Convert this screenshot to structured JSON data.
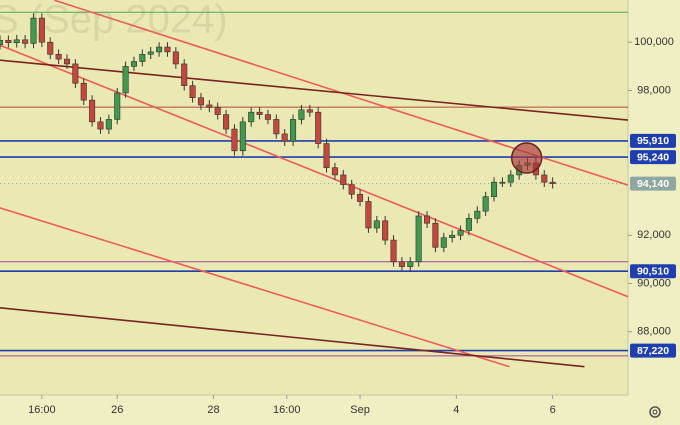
{
  "chart_data": {
    "type": "candlestick",
    "watermark": "S (Sep 2024)",
    "x": [
      0,
      2,
      4,
      6,
      8,
      10,
      12,
      14,
      16,
      18,
      20,
      22,
      24,
      26,
      28,
      30,
      32,
      34,
      36,
      38,
      40,
      42,
      44,
      46,
      48,
      50,
      52,
      54,
      56,
      58,
      60,
      62,
      64,
      66,
      68,
      70,
      72,
      74,
      76,
      78,
      80,
      82,
      84,
      86,
      88,
      90,
      92,
      94,
      96,
      98,
      100,
      102,
      104,
      106,
      108,
      110,
      112,
      114,
      116,
      118,
      120,
      122,
      124,
      126,
      128,
      130,
      132
    ],
    "open": [
      99900,
      100080,
      99980,
      100100,
      99950,
      101000,
      100000,
      99500,
      99300,
      99100,
      98300,
      97600,
      96700,
      96400,
      96800,
      97900,
      99000,
      99200,
      99500,
      99600,
      99800,
      99600,
      99100,
      98200,
      97700,
      97400,
      97300,
      97000,
      96400,
      95500,
      96700,
      97100,
      97000,
      96800,
      96200,
      95900,
      96800,
      97200,
      97100,
      95800,
      94800,
      94500,
      94100,
      93700,
      93400,
      92300,
      92600,
      91800,
      90900,
      90700,
      90900,
      92800,
      92500,
      91500,
      91900,
      92000,
      92200,
      92700,
      93000,
      93600,
      94200,
      94200,
      94500,
      94900,
      95000,
      94500,
      94200
    ],
    "high": [
      100280,
      100280,
      100300,
      100300,
      101200,
      101200,
      100200,
      99700,
      99500,
      99300,
      98500,
      97800,
      96900,
      97000,
      98100,
      99200,
      99400,
      99700,
      99800,
      100000,
      100000,
      99800,
      99300,
      98400,
      97900,
      97600,
      97500,
      97200,
      96600,
      96900,
      97300,
      97300,
      97200,
      97000,
      96400,
      97000,
      97400,
      97400,
      97300,
      96000,
      95000,
      94700,
      94300,
      93900,
      93600,
      92800,
      92800,
      92000,
      91100,
      91100,
      93000,
      93000,
      92700,
      92100,
      92200,
      92400,
      92900,
      93200,
      93800,
      94400,
      94400,
      94700,
      95100,
      95200,
      95200,
      94700,
      94400
    ],
    "low": [
      99700,
      99780,
      99780,
      99750,
      99750,
      99800,
      99300,
      99100,
      98900,
      98100,
      97400,
      96500,
      96200,
      96200,
      96600,
      97700,
      98800,
      99000,
      99300,
      99400,
      99400,
      98900,
      98000,
      97500,
      97200,
      97100,
      96800,
      96200,
      95300,
      95300,
      96500,
      96800,
      96600,
      96000,
      95700,
      95700,
      96600,
      96900,
      95600,
      94600,
      94300,
      93900,
      93500,
      93200,
      92100,
      92100,
      91600,
      90700,
      90500,
      90500,
      90700,
      92300,
      91300,
      91300,
      91700,
      91800,
      92000,
      92500,
      92800,
      93400,
      94000,
      94000,
      94300,
      94700,
      94300,
      94000,
      93940
    ],
    "close": [
      100080,
      99980,
      100100,
      99950,
      101000,
      100000,
      99500,
      99300,
      99100,
      98300,
      97600,
      96700,
      96400,
      96800,
      97900,
      99000,
      99200,
      99500,
      99600,
      99800,
      99600,
      99100,
      98200,
      97700,
      97400,
      97300,
      97000,
      96400,
      95500,
      96700,
      97100,
      97000,
      96800,
      96200,
      95900,
      96800,
      97200,
      97100,
      95800,
      94800,
      94500,
      94100,
      93700,
      93400,
      92300,
      92600,
      91800,
      90900,
      90700,
      90900,
      92800,
      92500,
      91500,
      91900,
      92000,
      92200,
      92700,
      93000,
      93600,
      94200,
      94200,
      94500,
      94900,
      95000,
      94500,
      94200,
      94140
    ],
    "up_color": "#3f9a4e",
    "down_color": "#c4473d",
    "xlim": [
      0,
      150
    ],
    "xticks": [
      {
        "value": 10,
        "label": "16:00"
      },
      {
        "value": 28,
        "label": "26"
      },
      {
        "value": 51,
        "label": "28"
      },
      {
        "value": 68.5,
        "label": "16:00"
      },
      {
        "value": 86,
        "label": "Sep"
      },
      {
        "value": 109,
        "label": "4"
      },
      {
        "value": 132,
        "label": "6"
      }
    ],
    "ylim": [
      85380,
      101750
    ],
    "yticks": [
      {
        "value": 100000,
        "label": "100,000"
      },
      {
        "value": 98000,
        "label": "98,000"
      },
      {
        "value": 92000,
        "label": "92,000"
      },
      {
        "value": 90000,
        "label": "90,000"
      },
      {
        "value": 88000,
        "label": "88,000"
      }
    ],
    "levels": [
      {
        "value": 101240,
        "color": "#5aa55a"
      },
      {
        "value": 97310,
        "color": "#b04a3a"
      },
      {
        "value": 95910,
        "label": "95,910",
        "color": "#1f3fb0"
      },
      {
        "value": 95240,
        "label": "95,240",
        "color": "#1f3fb0"
      },
      {
        "value": 90900,
        "color": "#9a4aa0"
      },
      {
        "value": 90510,
        "label": "90,510",
        "color": "#1f3fb0"
      },
      {
        "value": 87220,
        "label": "87,220",
        "color": "#1f3fb0"
      },
      {
        "value": 87000,
        "color": "#9a4aa0"
      }
    ],
    "last_price": {
      "value": 94140,
      "label": "94,140",
      "color": "#8fa7a0"
    },
    "trendlines": [
      {
        "x": [
          13,
          150
        ],
        "y": [
          101740,
          94080
        ],
        "color": "#f05a5a"
      },
      {
        "x": [
          0,
          150
        ],
        "y": [
          99876,
          89450
        ],
        "color": "#f05a5a"
      },
      {
        "x": [
          0,
          121.7
        ],
        "y": [
          93132,
          86553
        ],
        "color": "#f05a5a"
      },
      {
        "x": [
          0,
          150
        ],
        "y": [
          99255,
          96773
        ],
        "color": "#7a2320"
      },
      {
        "x": [
          0,
          139.6
        ],
        "y": [
          88995,
          86553
        ],
        "color": "#7a2320"
      }
    ],
    "marker": {
      "x": 125.8,
      "y": 95200,
      "color": "#a8343a"
    }
  }
}
